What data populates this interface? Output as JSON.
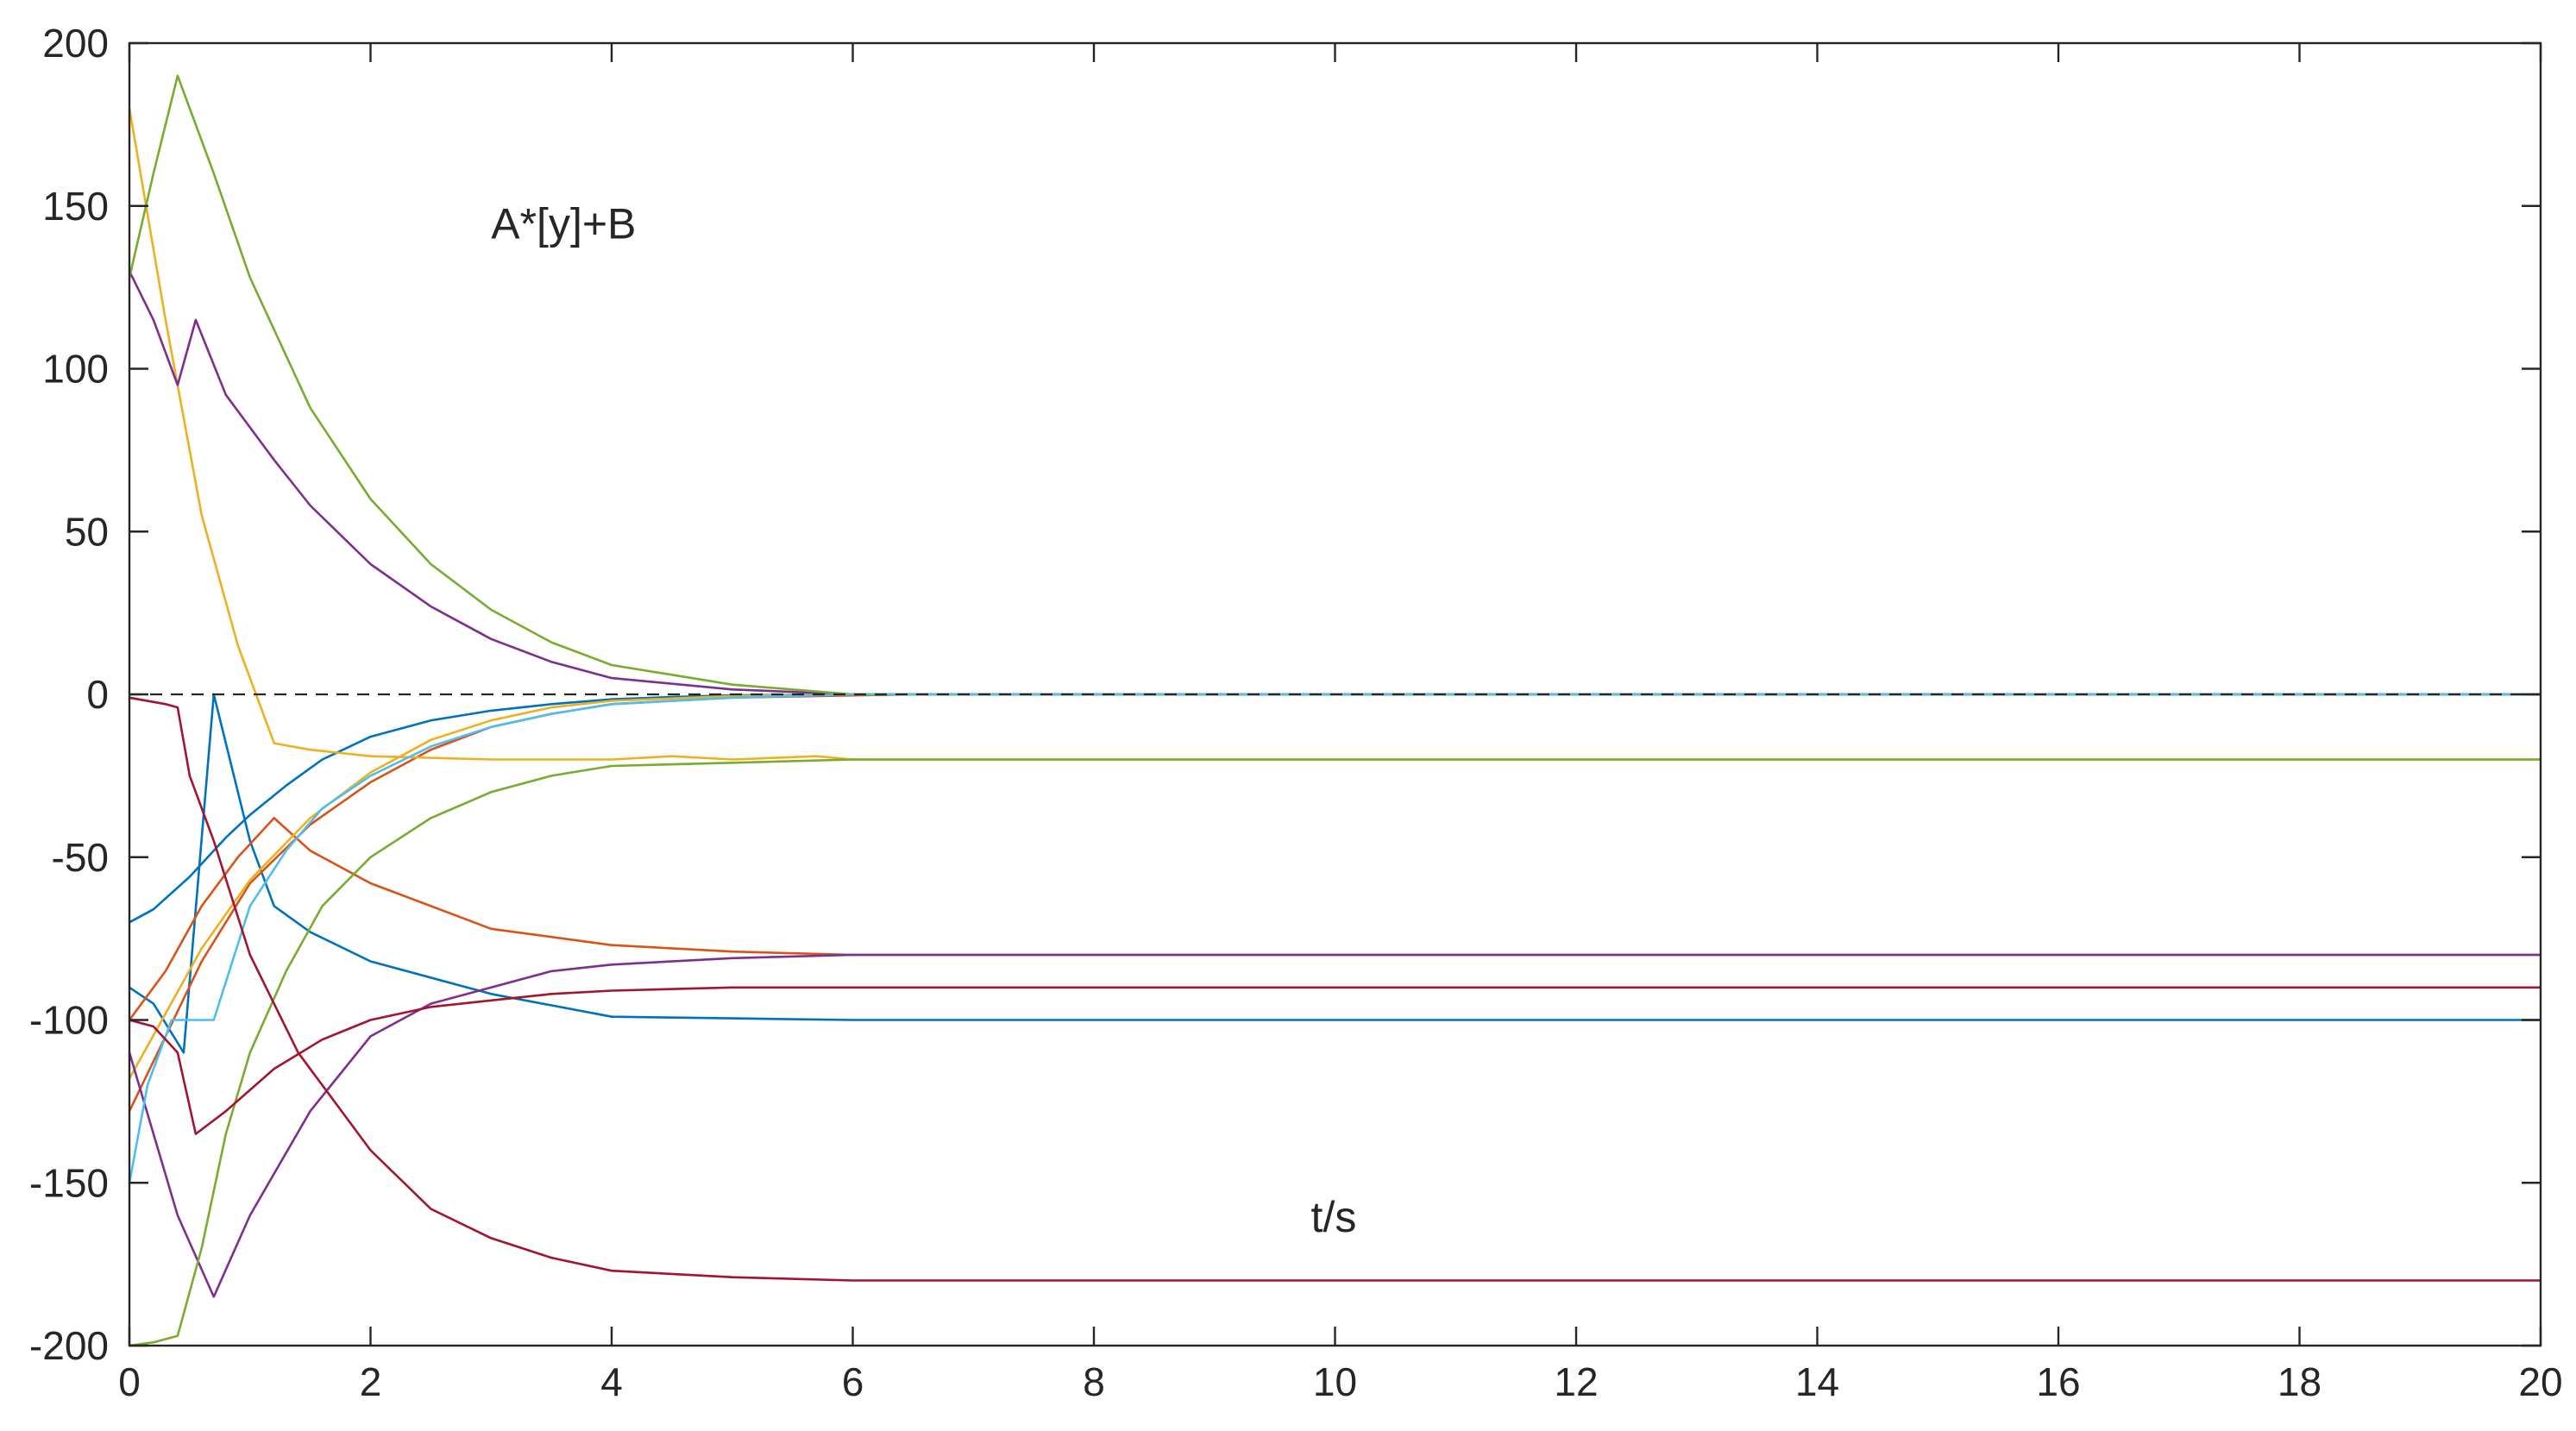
{
  "chart_data": {
    "type": "line",
    "title": "",
    "xlabel": "",
    "ylabel": "",
    "xlim": [
      0,
      20
    ],
    "ylim": [
      -200,
      200
    ],
    "xticks": [
      "0",
      "2",
      "4",
      "6",
      "8",
      "10",
      "12",
      "14",
      "16",
      "18",
      "20"
    ],
    "yticks": [
      "200",
      "150",
      "100",
      "50",
      "0",
      "-50",
      "-100",
      "-150",
      "-200"
    ],
    "grid": false,
    "box": true,
    "legend": "none",
    "annotations": [
      {
        "text": "A*[y]+B",
        "x": 3.0,
        "y": 140
      },
      {
        "text": "t/s",
        "x": 9.8,
        "y": -165
      }
    ],
    "reference_line": {
      "y": 0,
      "style": "dashed",
      "color": "#262626"
    },
    "series": [
      {
        "color": "#0072BD",
        "points": [
          [
            0,
            -70
          ],
          [
            0.2,
            -66
          ],
          [
            0.5,
            -56
          ],
          [
            0.8,
            -44
          ],
          [
            1.0,
            -37
          ],
          [
            1.3,
            -28
          ],
          [
            1.6,
            -20
          ],
          [
            2.0,
            -13
          ],
          [
            2.5,
            -8
          ],
          [
            3.0,
            -5
          ],
          [
            3.5,
            -3
          ],
          [
            4.0,
            -1.5
          ],
          [
            4.5,
            -0.8
          ],
          [
            5.0,
            -0.3
          ],
          [
            6.0,
            0
          ],
          [
            20,
            0
          ]
        ]
      },
      {
        "color": "#0072BD",
        "points": [
          [
            0,
            -90
          ],
          [
            0.2,
            -95
          ],
          [
            0.45,
            -110
          ],
          [
            0.7,
            0
          ],
          [
            1.0,
            -45
          ],
          [
            1.2,
            -65
          ],
          [
            1.5,
            -73
          ],
          [
            2.0,
            -82
          ],
          [
            3.0,
            -92
          ],
          [
            4.0,
            -99
          ],
          [
            5.0,
            -99.5
          ],
          [
            6.0,
            -100
          ],
          [
            20,
            -100
          ]
        ]
      },
      {
        "color": "#D95319",
        "points": [
          [
            0,
            -100
          ],
          [
            0.3,
            -85
          ],
          [
            0.6,
            -65
          ],
          [
            0.9,
            -50
          ],
          [
            1.2,
            -38
          ],
          [
            1.5,
            -48
          ],
          [
            2.0,
            -58
          ],
          [
            3.0,
            -72
          ],
          [
            4.0,
            -77
          ],
          [
            5.0,
            -79
          ],
          [
            6.0,
            -80
          ],
          [
            20,
            -80
          ]
        ]
      },
      {
        "color": "#D95319",
        "points": [
          [
            0,
            -128
          ],
          [
            0.3,
            -105
          ],
          [
            0.6,
            -82
          ],
          [
            1.0,
            -58
          ],
          [
            1.5,
            -40
          ],
          [
            2.0,
            -27
          ],
          [
            2.5,
            -17
          ],
          [
            3.0,
            -10
          ],
          [
            3.5,
            -6
          ],
          [
            4.0,
            -3
          ],
          [
            5.0,
            -1
          ],
          [
            6.5,
            0
          ],
          [
            20,
            0
          ]
        ]
      },
      {
        "color": "#EDB120",
        "points": [
          [
            0,
            180
          ],
          [
            0.3,
            115
          ],
          [
            0.6,
            55
          ],
          [
            0.9,
            15
          ],
          [
            1.2,
            -15
          ],
          [
            1.5,
            -17
          ],
          [
            2.0,
            -19
          ],
          [
            3.0,
            -20
          ],
          [
            4.0,
            -20
          ],
          [
            4.5,
            -19
          ],
          [
            5.0,
            -20
          ],
          [
            5.7,
            -19
          ],
          [
            6.0,
            -20
          ],
          [
            20,
            -20
          ]
        ]
      },
      {
        "color": "#EDB120",
        "points": [
          [
            0,
            -118
          ],
          [
            0.3,
            -98
          ],
          [
            0.6,
            -78
          ],
          [
            1.0,
            -57
          ],
          [
            1.5,
            -38
          ],
          [
            2.0,
            -24
          ],
          [
            2.5,
            -14
          ],
          [
            3.0,
            -8
          ],
          [
            3.5,
            -4
          ],
          [
            4.0,
            -2
          ],
          [
            5.0,
            -0.5
          ],
          [
            6.0,
            0
          ],
          [
            20,
            0
          ]
        ]
      },
      {
        "color": "#7E2F8E",
        "points": [
          [
            0,
            130
          ],
          [
            0.2,
            115
          ],
          [
            0.4,
            95
          ],
          [
            0.55,
            115
          ],
          [
            0.8,
            92
          ],
          [
            1.2,
            72
          ],
          [
            1.5,
            58
          ],
          [
            2.0,
            40
          ],
          [
            2.5,
            27
          ],
          [
            3.0,
            17
          ],
          [
            3.5,
            10
          ],
          [
            4.0,
            5
          ],
          [
            5.0,
            1.5
          ],
          [
            6.0,
            0
          ],
          [
            20,
            0
          ]
        ]
      },
      {
        "color": "#7E2F8E",
        "points": [
          [
            0,
            -110
          ],
          [
            0.4,
            -160
          ],
          [
            0.7,
            -185
          ],
          [
            1.0,
            -160
          ],
          [
            1.5,
            -128
          ],
          [
            2.0,
            -105
          ],
          [
            2.5,
            -95
          ],
          [
            3.0,
            -90
          ],
          [
            3.5,
            -85
          ],
          [
            4.0,
            -83
          ],
          [
            5.0,
            -81
          ],
          [
            6.0,
            -80
          ],
          [
            20,
            -80
          ]
        ]
      },
      {
        "color": "#77AC30",
        "points": [
          [
            0,
            128
          ],
          [
            0.2,
            160
          ],
          [
            0.4,
            190
          ],
          [
            0.7,
            160
          ],
          [
            1.0,
            128
          ],
          [
            1.5,
            88
          ],
          [
            2.0,
            60
          ],
          [
            2.5,
            40
          ],
          [
            3.0,
            26
          ],
          [
            3.5,
            16
          ],
          [
            4.0,
            9
          ],
          [
            5.0,
            3
          ],
          [
            6.0,
            0
          ],
          [
            20,
            0
          ]
        ]
      },
      {
        "color": "#77AC30",
        "points": [
          [
            0,
            -200
          ],
          [
            0.2,
            -199
          ],
          [
            0.4,
            -197
          ],
          [
            0.6,
            -170
          ],
          [
            0.8,
            -135
          ],
          [
            1.0,
            -110
          ],
          [
            1.3,
            -85
          ],
          [
            1.6,
            -65
          ],
          [
            2.0,
            -50
          ],
          [
            2.5,
            -38
          ],
          [
            3.0,
            -30
          ],
          [
            3.5,
            -25
          ],
          [
            4.0,
            -22
          ],
          [
            5.0,
            -21
          ],
          [
            6.0,
            -20
          ],
          [
            20,
            -20
          ]
        ]
      },
      {
        "color": "#4DBEEE",
        "points": [
          [
            0,
            -150
          ],
          [
            0.15,
            -120
          ],
          [
            0.35,
            -100
          ],
          [
            0.7,
            -100
          ],
          [
            1.0,
            -65
          ],
          [
            1.3,
            -48
          ],
          [
            1.6,
            -35
          ],
          [
            2.0,
            -25
          ],
          [
            2.5,
            -16
          ],
          [
            3.0,
            -10
          ],
          [
            3.5,
            -6
          ],
          [
            4.0,
            -3
          ],
          [
            5.0,
            -1
          ],
          [
            6.0,
            0
          ],
          [
            20,
            0
          ]
        ]
      },
      {
        "color": "#A2142F",
        "points": [
          [
            0,
            -1
          ],
          [
            0.3,
            -3
          ],
          [
            0.4,
            -4
          ],
          [
            0.5,
            -25
          ],
          [
            0.7,
            -45
          ],
          [
            1.0,
            -80
          ],
          [
            1.4,
            -110
          ],
          [
            2.0,
            -140
          ],
          [
            2.5,
            -158
          ],
          [
            3.0,
            -167
          ],
          [
            3.5,
            -173
          ],
          [
            4.0,
            -177
          ],
          [
            5.0,
            -179
          ],
          [
            6.0,
            -180
          ],
          [
            20,
            -180
          ]
        ]
      },
      {
        "color": "#A2142F",
        "points": [
          [
            0,
            -100
          ],
          [
            0.2,
            -102
          ],
          [
            0.4,
            -110
          ],
          [
            0.55,
            -135
          ],
          [
            0.8,
            -128
          ],
          [
            1.2,
            -115
          ],
          [
            1.6,
            -106
          ],
          [
            2.0,
            -100
          ],
          [
            2.5,
            -96
          ],
          [
            3.0,
            -94
          ],
          [
            3.5,
            -92
          ],
          [
            4.0,
            -91
          ],
          [
            5.0,
            -90
          ],
          [
            6.0,
            -90
          ],
          [
            20,
            -90
          ]
        ]
      }
    ]
  }
}
